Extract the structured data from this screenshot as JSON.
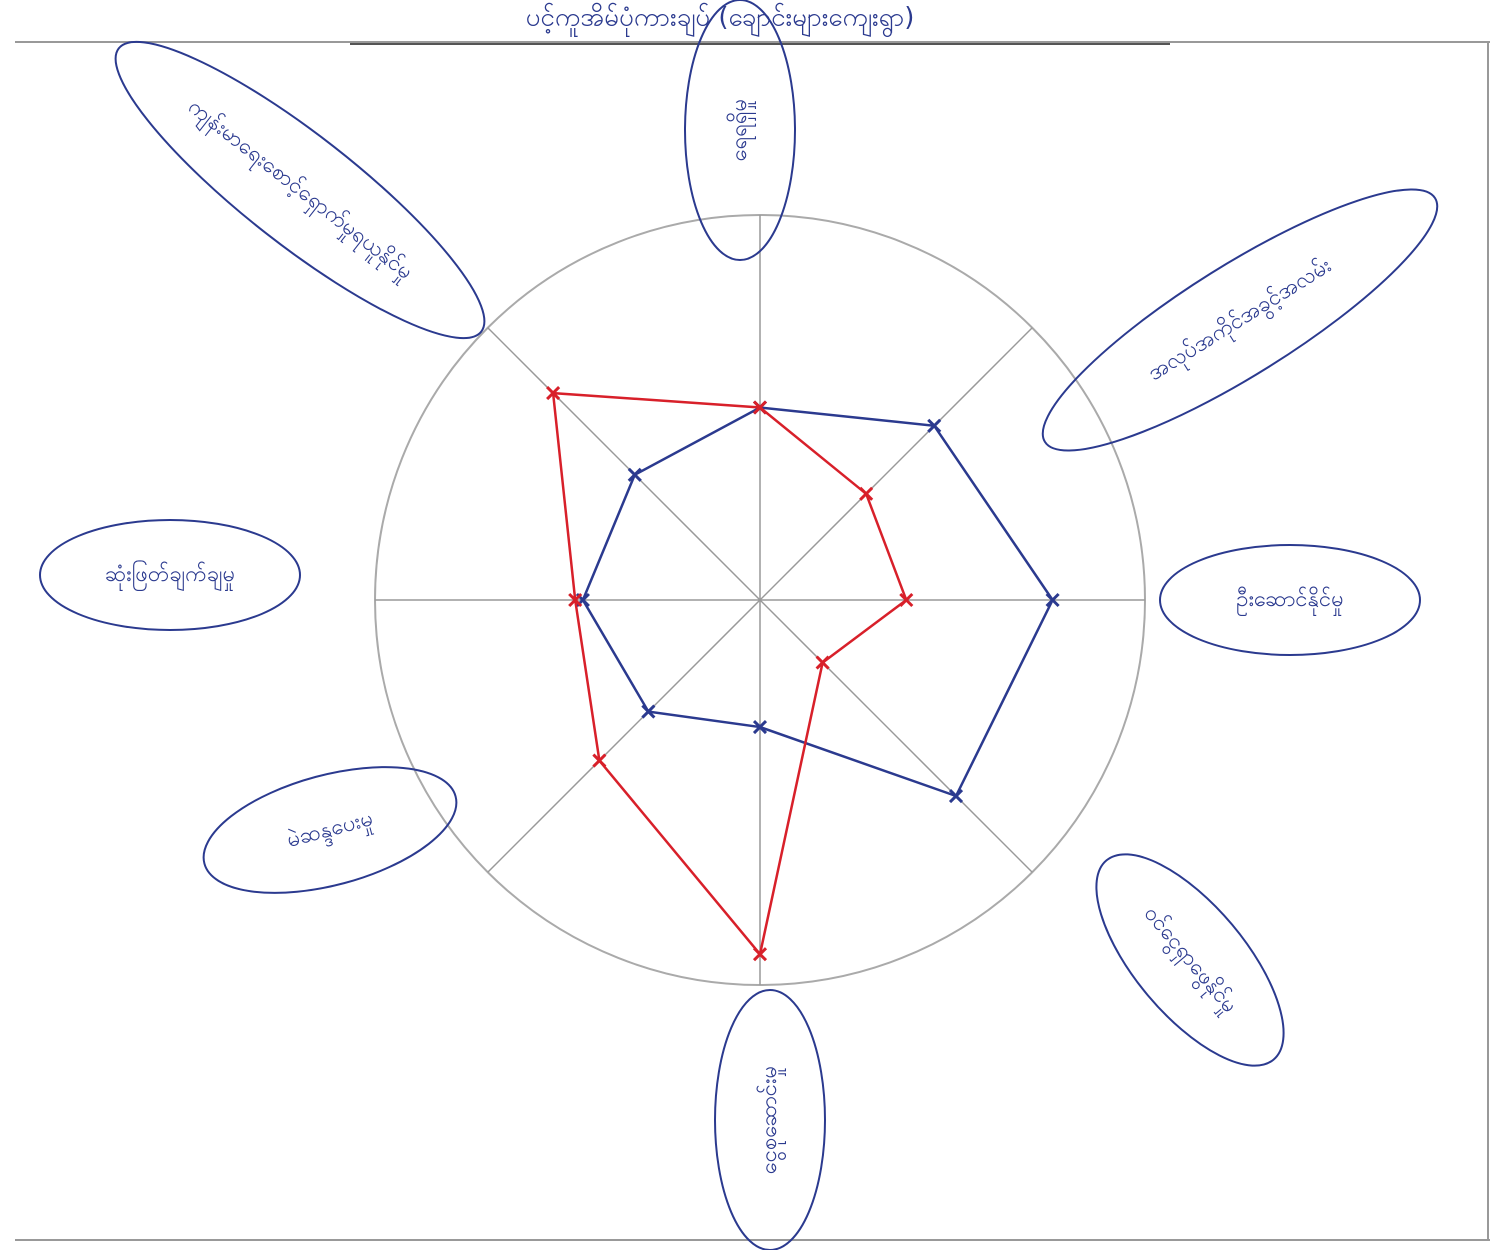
{
  "chart_data": {
    "type": "radar",
    "title": "ပင့်ကူအိမ်ပုံကားချပ် (ချောင်းများကျေးရွာ)",
    "categories": [
      "ရေရရှိမှု",
      "အလုပ်အကိုင်အခွင့်အလမ်း",
      "ဦးဆောင်နိုင်မှု",
      "ဝင်ငွေရှာဖွေနိုင်မှု",
      "ငွေစုဆောင်းမှု",
      "မဲဆန္ဒပေးမှု",
      "ဆုံးဖြတ်ချက်ချမှု",
      "ကျန်းမာရေးစောင့်ရှောက်မှုရယူနိုင်မှု"
    ],
    "rlim": [
      0,
      10
    ],
    "series": [
      {
        "color": "#2b3a8f",
        "values": [
          5,
          6.4,
          7.6,
          7.2,
          3.3,
          4.1,
          4.6,
          4.6
        ]
      },
      {
        "color": "#d8202a",
        "values": [
          5,
          3.9,
          3.8,
          2.3,
          9.2,
          5.9,
          4.8,
          7.6
        ]
      }
    ]
  }
}
